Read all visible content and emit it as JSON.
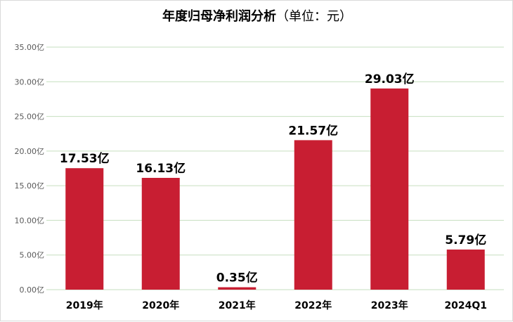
{
  "chart_data": {
    "type": "bar",
    "title": "年度归母净利润分析",
    "title_unit": "（单位：元）",
    "categories": [
      "2019年",
      "2020年",
      "2021年",
      "2022年",
      "2023年",
      "2024Q1"
    ],
    "values": [
      17.53,
      16.13,
      0.35,
      21.57,
      29.03,
      5.79
    ],
    "value_labels": [
      "17.53亿",
      "16.13亿",
      "0.35亿",
      "21.57亿",
      "29.03亿",
      "5.79亿"
    ],
    "ylim": [
      0,
      35
    ],
    "y_ticks": [
      0,
      5,
      10,
      15,
      20,
      25,
      30,
      35
    ],
    "y_tick_labels": [
      "0.00亿",
      "5.00亿",
      "10.00亿",
      "15.00亿",
      "20.00亿",
      "25.00亿",
      "30.00亿",
      "35.00亿"
    ],
    "grid": true,
    "colors": {
      "bar": "#c81e32",
      "grid": "#c6dfbf",
      "axis_text": "#595959"
    }
  }
}
